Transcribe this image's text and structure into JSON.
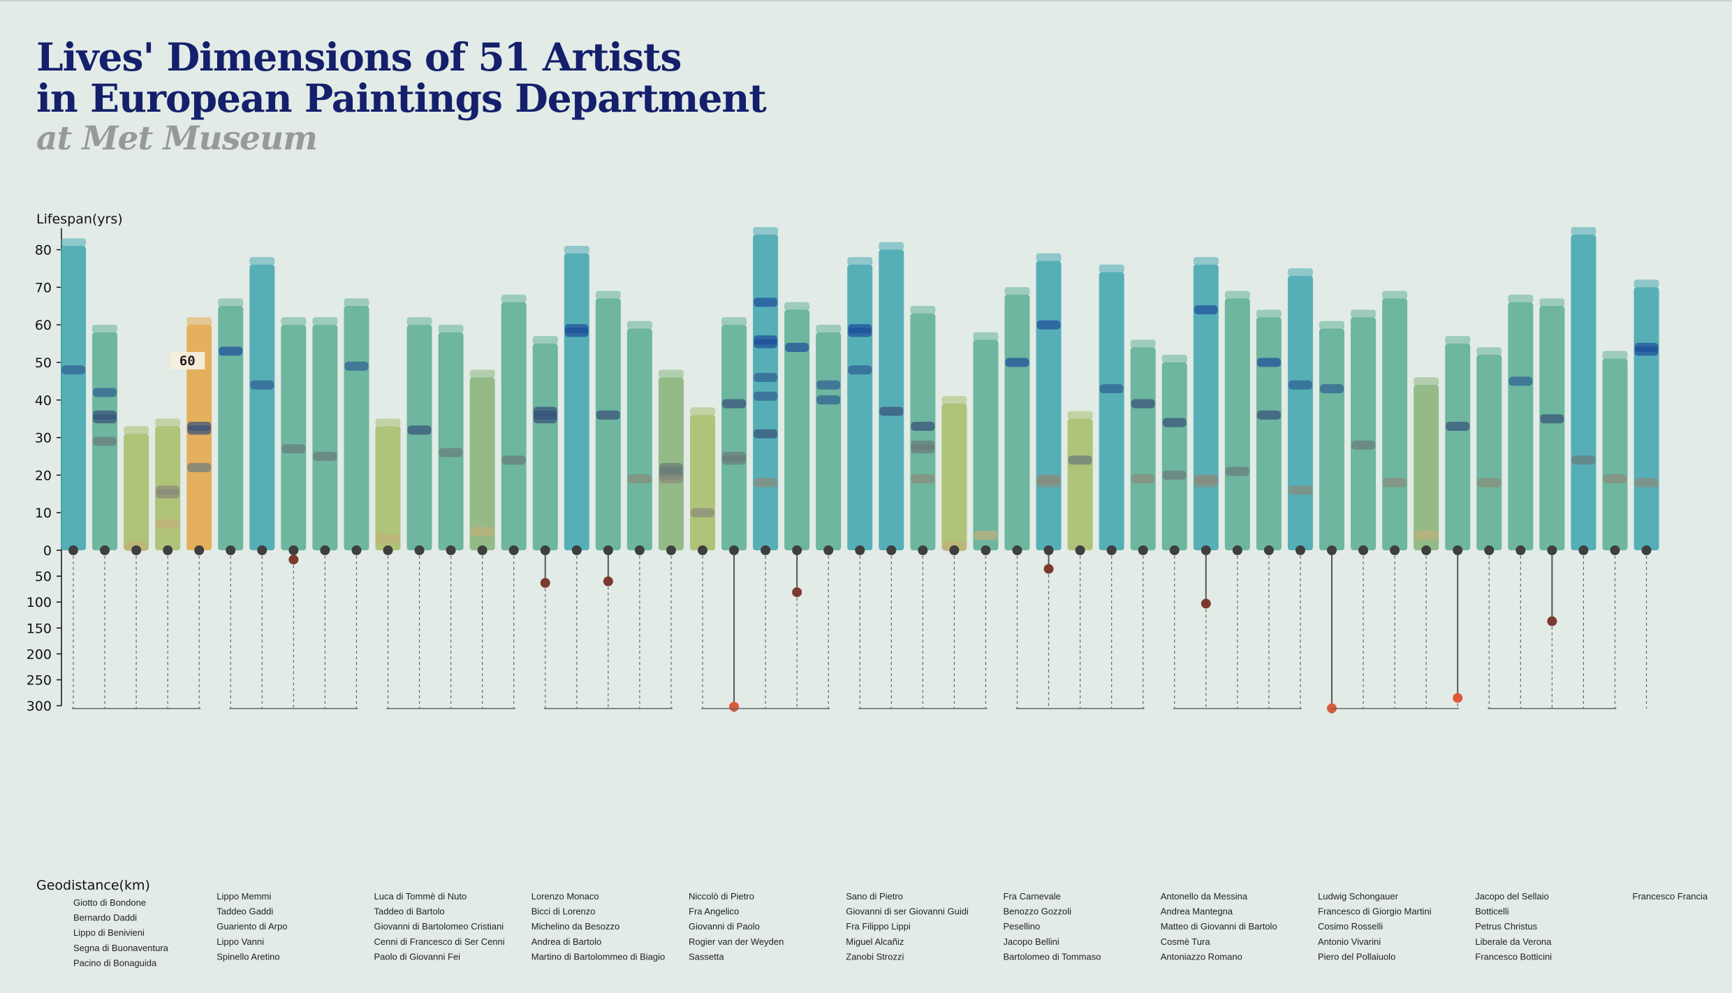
{
  "title": {
    "line1": "Lives' Dimensions of 51 Artists",
    "line2": "in European Paintings Department",
    "line3": "at Met Museum"
  },
  "colors": {
    "background": "#e2ebe6",
    "title": "#14206b",
    "subtitle": "#979a98",
    "bar_teal": "#4aa9b3",
    "bar_green": "#64b199",
    "bar_olive": "#8db67f",
    "bar_yellowgreen": "#aabf70",
    "bar_highlight": "#e4aa52",
    "dot": "#3f3f3f",
    "dot_far": "#7a3b2e",
    "dot_farthest": "#e0583a"
  },
  "chart_data": {
    "type": "bar",
    "upper_ylabel": "Lifespan(yrs)",
    "lower_ylabel": "Geodistance(km)",
    "upper_ylim": [
      0,
      85
    ],
    "upper_ticks": [
      0,
      10,
      20,
      30,
      40,
      50,
      60,
      70,
      80
    ],
    "lower_ticks": [
      50,
      100,
      150,
      200,
      250,
      300
    ],
    "highlight": {
      "artist": "Pacino di Bonaguida",
      "label": "60"
    },
    "artists": [
      {
        "name": "Giotto di Bondone",
        "lifespan": 81,
        "geodistance": 0,
        "works": [
          48
        ]
      },
      {
        "name": "Bernardo Daddi",
        "lifespan": 58,
        "geodistance": 0,
        "works": [
          42,
          36,
          35,
          29
        ]
      },
      {
        "name": "Lippo di Benivieni",
        "lifespan": 31,
        "geodistance": 0,
        "works": [
          1
        ]
      },
      {
        "name": "Segna di Buonaventura",
        "lifespan": 33,
        "geodistance": 0,
        "works": [
          16,
          15,
          7
        ]
      },
      {
        "name": "Pacino di Bonaguida",
        "lifespan": 60,
        "geodistance": 0,
        "works": [
          33,
          32,
          22
        ]
      },
      {
        "name": "Lippo Memmi",
        "lifespan": 65,
        "geodistance": 0,
        "works": [
          53
        ]
      },
      {
        "name": "Taddeo Gaddi",
        "lifespan": 76,
        "geodistance": 0,
        "works": [
          44
        ]
      },
      {
        "name": "Guariento di Arpo",
        "lifespan": 60,
        "geodistance": 18,
        "works": [
          27
        ]
      },
      {
        "name": "Lippo Vanni",
        "lifespan": 60,
        "geodistance": 0,
        "works": [
          25
        ]
      },
      {
        "name": "Spinello Aretino",
        "lifespan": 65,
        "geodistance": 0,
        "works": [
          49
        ]
      },
      {
        "name": "Luca di Tommè di Nuto",
        "lifespan": 33,
        "geodistance": 0,
        "works": [
          3
        ]
      },
      {
        "name": "Taddeo di Bartolo",
        "lifespan": 60,
        "geodistance": 0,
        "works": [
          32
        ]
      },
      {
        "name": "Giovanni di Bartolomeo Cristiani",
        "lifespan": 58,
        "geodistance": 0,
        "works": [
          26
        ]
      },
      {
        "name": "Cenni di Francesco di Ser Cenni",
        "lifespan": 46,
        "geodistance": 0,
        "works": [
          5
        ]
      },
      {
        "name": "Paolo di Giovanni Fei",
        "lifespan": 66,
        "geodistance": 0,
        "works": [
          24
        ]
      },
      {
        "name": "Lorenzo Monaco",
        "lifespan": 55,
        "geodistance": 63,
        "works": [
          37,
          36,
          35
        ]
      },
      {
        "name": "Bicci di Lorenzo",
        "lifespan": 79,
        "geodistance": 0,
        "works": [
          59,
          58
        ]
      },
      {
        "name": "Michelino da Besozzo",
        "lifespan": 67,
        "geodistance": 60,
        "works": [
          36
        ]
      },
      {
        "name": "Andrea di Bartolo",
        "lifespan": 59,
        "geodistance": 0,
        "works": [
          19
        ]
      },
      {
        "name": "Martino di Bartolommeo di Biagio",
        "lifespan": 46,
        "geodistance": 0,
        "works": [
          22,
          21,
          20,
          19
        ]
      },
      {
        "name": "Niccolò di Pietro",
        "lifespan": 36,
        "geodistance": 0,
        "works": [
          10
        ]
      },
      {
        "name": "Fra Angelico",
        "lifespan": 60,
        "geodistance": 302,
        "works": [
          39,
          25,
          24
        ]
      },
      {
        "name": "Giovanni di Paolo",
        "lifespan": 84,
        "geodistance": 0,
        "works": [
          66,
          56,
          55,
          46,
          41,
          31,
          18
        ]
      },
      {
        "name": "Rogier van der Weyden",
        "lifespan": 64,
        "geodistance": 81,
        "works": [
          54
        ]
      },
      {
        "name": "Sassetta",
        "lifespan": 58,
        "geodistance": 0,
        "works": [
          44,
          40
        ]
      },
      {
        "name": "Sano di Pietro",
        "lifespan": 76,
        "geodistance": 0,
        "works": [
          59,
          58,
          48
        ]
      },
      {
        "name": "Giovanni di ser Giovanni Guidi",
        "lifespan": 80,
        "geodistance": 0,
        "works": [
          37
        ]
      },
      {
        "name": "Fra Filippo Lippi",
        "lifespan": 63,
        "geodistance": 0,
        "works": [
          33,
          28,
          27,
          19
        ]
      },
      {
        "name": "Miguel Alcañiz",
        "lifespan": 39,
        "geodistance": 0,
        "works": [
          1
        ]
      },
      {
        "name": "Zanobi Strozzi",
        "lifespan": 56,
        "geodistance": 0,
        "works": [
          4
        ]
      },
      {
        "name": "Fra Carnevale",
        "lifespan": 68,
        "geodistance": 0,
        "works": [
          50
        ]
      },
      {
        "name": "Benozzo Gozzoli",
        "lifespan": 77,
        "geodistance": 36,
        "works": [
          60,
          19,
          18
        ]
      },
      {
        "name": "Pesellino",
        "lifespan": 35,
        "geodistance": 0,
        "works": [
          24
        ]
      },
      {
        "name": "Jacopo Bellini",
        "lifespan": 74,
        "geodistance": 0,
        "works": [
          43
        ]
      },
      {
        "name": "Bartolomeo di Tommaso",
        "lifespan": 54,
        "geodistance": 0,
        "works": [
          39,
          19
        ]
      },
      {
        "name": "Antonello da Messina",
        "lifespan": 50,
        "geodistance": 0,
        "works": [
          34,
          20
        ]
      },
      {
        "name": "Andrea Mantegna",
        "lifespan": 76,
        "geodistance": 103,
        "works": [
          64,
          19,
          18
        ]
      },
      {
        "name": "Matteo di Giovanni di Bartolo",
        "lifespan": 67,
        "geodistance": 0,
        "works": [
          21
        ]
      },
      {
        "name": "Cosmè Tura",
        "lifespan": 62,
        "geodistance": 0,
        "works": [
          50,
          36
        ]
      },
      {
        "name": "Antoniazzo Romano",
        "lifespan": 73,
        "geodistance": 0,
        "works": [
          44,
          16
        ]
      },
      {
        "name": "Ludwig Schongauer",
        "lifespan": 59,
        "geodistance": 305,
        "works": [
          43
        ]
      },
      {
        "name": "Francesco di Giorgio Martini",
        "lifespan": 62,
        "geodistance": 0,
        "works": [
          28
        ]
      },
      {
        "name": "Cosimo Rosselli",
        "lifespan": 67,
        "geodistance": 0,
        "works": [
          18
        ]
      },
      {
        "name": "Antonio Vivarini",
        "lifespan": 44,
        "geodistance": 0,
        "works": [
          4
        ]
      },
      {
        "name": "Piero del Pollaiuolo",
        "lifespan": 55,
        "geodistance": 285,
        "works": [
          33
        ]
      },
      {
        "name": "Jacopo del Sellaio",
        "lifespan": 52,
        "geodistance": 0,
        "works": [
          18
        ]
      },
      {
        "name": "Botticelli",
        "lifespan": 66,
        "geodistance": 0,
        "works": [
          45
        ]
      },
      {
        "name": "Petrus Christus",
        "lifespan": 65,
        "geodistance": 137,
        "works": [
          35
        ]
      },
      {
        "name": "Liberale da Verona",
        "lifespan": 84,
        "geodistance": 0,
        "works": [
          24
        ]
      },
      {
        "name": "Francesco Botticini",
        "lifespan": 51,
        "geodistance": 0,
        "works": [
          19
        ]
      },
      {
        "name": "Francesco Francia",
        "lifespan": 70,
        "geodistance": 0,
        "works": [
          54,
          53,
          18
        ]
      }
    ]
  }
}
